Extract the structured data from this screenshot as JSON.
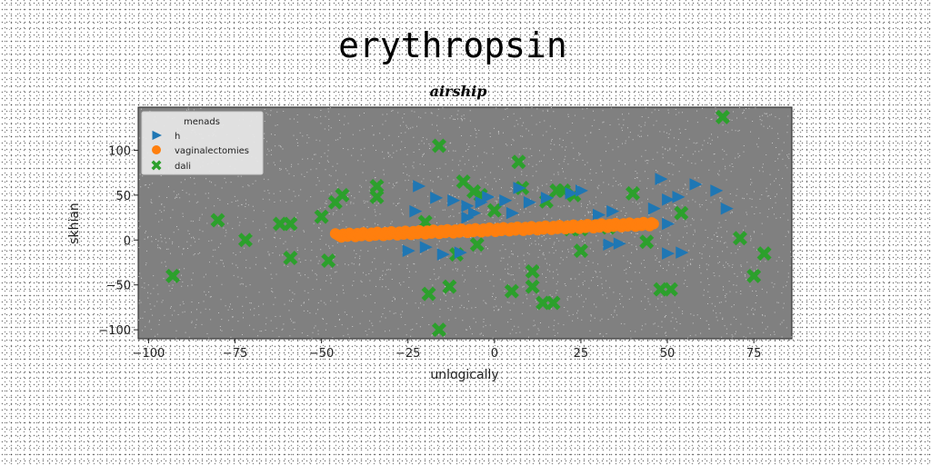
{
  "chart_data": {
    "type": "scatter",
    "title": "erythropsin",
    "subtitle": "airship",
    "xlabel": "unlogically",
    "ylabel": "skhian",
    "xlim": [
      -103,
      86
    ],
    "ylim": [
      -110,
      148
    ],
    "xticks": [
      -100,
      -75,
      -50,
      -25,
      0,
      25,
      50,
      75
    ],
    "yticks": [
      -100,
      -50,
      0,
      50,
      100
    ],
    "grid": false,
    "plot_background": "#808080",
    "legend": {
      "title": "menads",
      "placement": "top-left"
    },
    "series": [
      {
        "name": "h",
        "marker": "triangle-right",
        "color": "#1f77b4",
        "points": [
          [
            -22,
            60
          ],
          [
            -17,
            47
          ],
          [
            -12,
            44
          ],
          [
            -8,
            38
          ],
          [
            -4,
            42
          ],
          [
            -2,
            48
          ],
          [
            3,
            44
          ],
          [
            7,
            58
          ],
          [
            10,
            42
          ],
          [
            15,
            47
          ],
          [
            22,
            52
          ],
          [
            25,
            55
          ],
          [
            30,
            28
          ],
          [
            34,
            32
          ],
          [
            48,
            68
          ],
          [
            50,
            45
          ],
          [
            53,
            48
          ],
          [
            58,
            62
          ],
          [
            64,
            55
          ],
          [
            67,
            35
          ],
          [
            50,
            18
          ],
          [
            -23,
            32
          ],
          [
            -6,
            30
          ],
          [
            5,
            30
          ],
          [
            -25,
            -12
          ],
          [
            -20,
            -8
          ],
          [
            -15,
            -16
          ],
          [
            -10,
            -14
          ],
          [
            33,
            -5
          ],
          [
            36,
            -4
          ],
          [
            50,
            -15
          ],
          [
            54,
            -14
          ],
          [
            46,
            35
          ],
          [
            -8,
            25
          ]
        ]
      },
      {
        "name": "vaginalectomies",
        "marker": "circle",
        "color": "#ff7f0e",
        "line_from": [
          -46,
          5
        ],
        "line_to": [
          46,
          18
        ],
        "count": 160
      },
      {
        "name": "dali",
        "marker": "x-filled",
        "color": "#2ca02c",
        "points": [
          [
            -93,
            -40
          ],
          [
            -80,
            22
          ],
          [
            -72,
            0
          ],
          [
            -62,
            18
          ],
          [
            -59,
            18
          ],
          [
            -59,
            -20
          ],
          [
            -50,
            26
          ],
          [
            -48,
            -23
          ],
          [
            -46,
            42
          ],
          [
            -44,
            50
          ],
          [
            -34,
            60
          ],
          [
            -34,
            48
          ],
          [
            -20,
            20
          ],
          [
            -19,
            -60
          ],
          [
            -16,
            -100
          ],
          [
            -16,
            105
          ],
          [
            -13,
            -52
          ],
          [
            -11,
            -16
          ],
          [
            -9,
            65
          ],
          [
            -6,
            54
          ],
          [
            -5,
            -5
          ],
          [
            -4,
            50
          ],
          [
            0,
            33
          ],
          [
            5,
            -57
          ],
          [
            7,
            87
          ],
          [
            8,
            58
          ],
          [
            11,
            -52
          ],
          [
            11,
            -35
          ],
          [
            14,
            -70
          ],
          [
            15,
            43
          ],
          [
            17,
            -70
          ],
          [
            18,
            55
          ],
          [
            20,
            55
          ],
          [
            22,
            12
          ],
          [
            23,
            50
          ],
          [
            25,
            12
          ],
          [
            25,
            -12
          ],
          [
            33,
            14
          ],
          [
            40,
            52
          ],
          [
            44,
            -2
          ],
          [
            48,
            -55
          ],
          [
            51,
            -55
          ],
          [
            54,
            30
          ],
          [
            66,
            137
          ],
          [
            71,
            2
          ],
          [
            75,
            -40
          ],
          [
            78,
            -15
          ]
        ]
      }
    ]
  }
}
